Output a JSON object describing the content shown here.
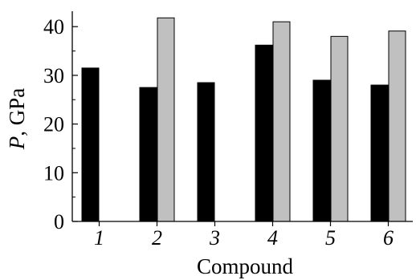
{
  "chart_data": {
    "type": "bar",
    "categories": [
      "1",
      "2",
      "3",
      "4",
      "5",
      "6"
    ],
    "series": [
      {
        "values": [
          31.5,
          27.5,
          28.5,
          36.2,
          29.0,
          28.0
        ],
        "color": "#000000"
      },
      {
        "values": [
          null,
          41.8,
          null,
          41.0,
          38.0,
          39.1
        ],
        "color": "#c0c0c0"
      }
    ],
    "xlabel": "Compound",
    "ylabel": {
      "symbol": "P",
      "unit": ", GPa"
    },
    "ylim": [
      0,
      43
    ],
    "yticks": [
      0,
      10,
      20,
      30,
      40
    ],
    "y_minor_ticks": [
      5,
      15,
      25,
      35
    ],
    "grid": false,
    "legend": "none"
  }
}
